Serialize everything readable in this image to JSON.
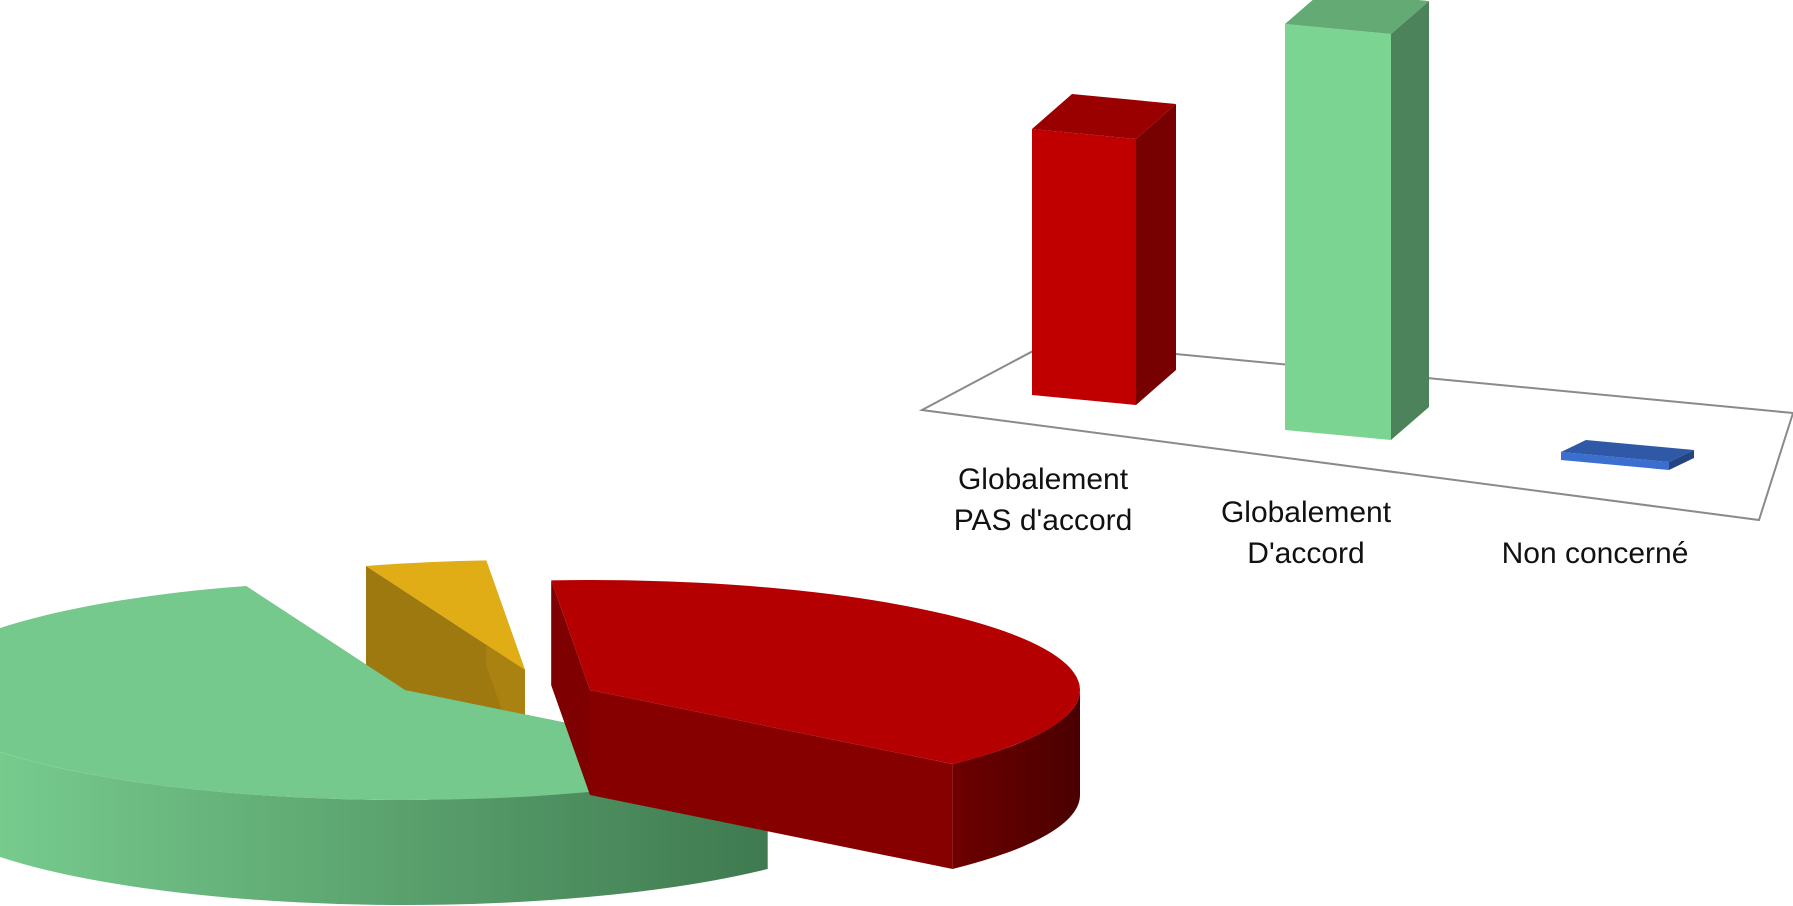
{
  "chart_data": [
    {
      "type": "bar",
      "style": "3d-column",
      "categories": [
        "Globalement PAS d'accord",
        "Globalement D'accord",
        "Non concerné"
      ],
      "category_label_lines": [
        [
          "Globalement",
          "PAS d'accord"
        ],
        [
          "Globalement",
          "D'accord"
        ],
        [
          "Non concerné"
        ]
      ],
      "values": [
        38,
        58,
        1
      ],
      "colors": [
        "#c00000",
        "#7cd492",
        "#3b6fcf"
      ],
      "grid": false,
      "legend": "none"
    },
    {
      "type": "pie",
      "style": "3d-exploded",
      "categories": [
        "Globalement PAS d'accord",
        "Globalement D'accord",
        "Non concerné"
      ],
      "values": [
        38,
        58,
        4
      ],
      "colors": [
        "#b40000",
        "#76c98c",
        "#e1ad16"
      ],
      "legend": "none"
    }
  ]
}
